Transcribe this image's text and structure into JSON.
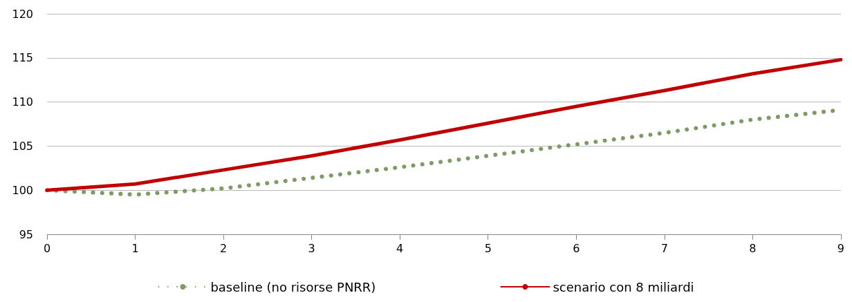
{
  "chart_data": {
    "type": "line",
    "x": [
      0,
      1,
      2,
      3,
      4,
      5,
      6,
      7,
      8,
      9
    ],
    "series": [
      {
        "name": "baseline (no risorse PNRR)",
        "color": "#7f9a65",
        "line_style": "dotted",
        "values": [
          100,
          99.5,
          100.2,
          101.4,
          102.6,
          103.9,
          105.2,
          106.5,
          108.0,
          109.1
        ]
      },
      {
        "name": "scenario con 8 miliardi",
        "color": "#c00000",
        "line_style": "solid",
        "values": [
          100,
          100.7,
          102.3,
          103.9,
          105.7,
          107.6,
          109.5,
          111.3,
          113.2,
          114.8
        ]
      }
    ],
    "xlim": [
      0,
      9
    ],
    "xticks": [
      0,
      1,
      2,
      3,
      4,
      5,
      6,
      7,
      8,
      9
    ],
    "ylim": [
      95,
      120
    ],
    "yticks": [
      95,
      100,
      105,
      110,
      115,
      120
    ],
    "grid": "y",
    "legend": "bottom",
    "marker": "none"
  }
}
